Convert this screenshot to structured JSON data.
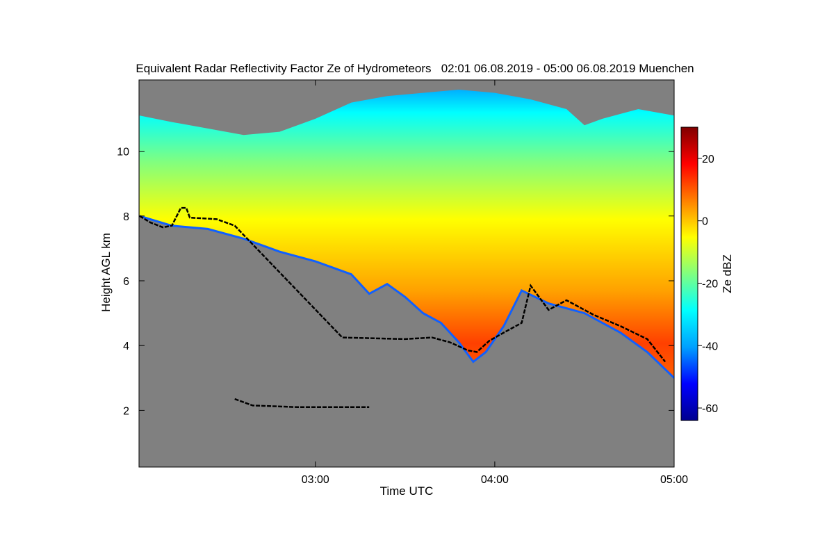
{
  "chart_data": {
    "type": "heatmap",
    "title": "Equivalent Radar Reflectivity Factor Ze of Hydrometeors   02:01 06.08.2019 - 05:00 06.08.2019 Muenchen",
    "xlabel": "Time UTC",
    "ylabel": "Height AGL km",
    "x_ticks": [
      "03:00",
      "04:00",
      "05:00"
    ],
    "y_ticks": [
      "2",
      "4",
      "6",
      "8",
      "10"
    ],
    "xlim": [
      "02:01",
      "05:00"
    ],
    "ylim": [
      0.25,
      12.2
    ],
    "colorbar": {
      "label": "Ze dBZ",
      "ticks": [
        "20",
        "0",
        "-20",
        "-40",
        "-60"
      ],
      "range": [
        -64,
        30
      ],
      "colors": [
        "#00008f",
        "#0000ff",
        "#00a0ff",
        "#00ffff",
        "#80ff80",
        "#ffff00",
        "#ff8000",
        "#ff0000",
        "#800000"
      ]
    },
    "background_color": "#808080",
    "echo_top_km": [
      [
        2.02,
        11.1
      ],
      [
        2.2,
        10.9
      ],
      [
        2.4,
        10.7
      ],
      [
        2.6,
        10.5
      ],
      [
        2.8,
        10.6
      ],
      [
        3.0,
        11.0
      ],
      [
        3.2,
        11.5
      ],
      [
        3.4,
        11.7
      ],
      [
        3.6,
        11.8
      ],
      [
        3.8,
        11.9
      ],
      [
        4.0,
        11.8
      ],
      [
        4.2,
        11.6
      ],
      [
        4.4,
        11.3
      ],
      [
        4.5,
        10.8
      ],
      [
        4.6,
        11.0
      ],
      [
        4.8,
        11.3
      ],
      [
        5.0,
        11.1
      ]
    ],
    "echo_base_km": [
      [
        2.02,
        8.0
      ],
      [
        2.2,
        7.7
      ],
      [
        2.4,
        7.6
      ],
      [
        2.6,
        7.3
      ],
      [
        2.8,
        6.9
      ],
      [
        3.0,
        6.6
      ],
      [
        3.2,
        6.2
      ],
      [
        3.3,
        5.6
      ],
      [
        3.4,
        5.9
      ],
      [
        3.5,
        5.5
      ],
      [
        3.6,
        5.0
      ],
      [
        3.7,
        4.7
      ],
      [
        3.8,
        4.1
      ],
      [
        3.88,
        3.5
      ],
      [
        3.95,
        3.8
      ],
      [
        4.05,
        4.6
      ],
      [
        4.15,
        5.7
      ],
      [
        4.3,
        5.3
      ],
      [
        4.5,
        5.0
      ],
      [
        4.7,
        4.4
      ],
      [
        4.85,
        3.8
      ],
      [
        5.0,
        3.0
      ]
    ],
    "series": [
      {
        "name": "",
        "type": "line",
        "color": "#000000",
        "points": [
          [
            2.02,
            8.0
          ],
          [
            2.08,
            7.8
          ],
          [
            2.15,
            7.65
          ],
          [
            2.2,
            7.7
          ],
          [
            2.25,
            8.25
          ],
          [
            2.28,
            8.25
          ],
          [
            2.3,
            7.95
          ],
          [
            2.45,
            7.9
          ],
          [
            2.55,
            7.7
          ],
          [
            3.15,
            4.25
          ],
          [
            3.5,
            4.2
          ],
          [
            3.65,
            4.25
          ],
          [
            3.75,
            4.1
          ],
          [
            3.85,
            3.85
          ],
          [
            3.9,
            3.8
          ],
          [
            3.97,
            4.15
          ],
          [
            4.05,
            4.4
          ],
          [
            4.15,
            4.7
          ],
          [
            4.2,
            5.85
          ],
          [
            4.3,
            5.1
          ],
          [
            4.4,
            5.4
          ],
          [
            4.55,
            4.95
          ],
          [
            4.7,
            4.6
          ],
          [
            4.85,
            4.2
          ],
          [
            4.95,
            3.5
          ]
        ]
      },
      {
        "name": "",
        "type": "line",
        "color": "#000000",
        "points": [
          [
            2.55,
            2.35
          ],
          [
            2.65,
            2.15
          ],
          [
            2.9,
            2.1
          ],
          [
            3.1,
            2.1
          ],
          [
            3.3,
            2.1
          ]
        ]
      }
    ]
  }
}
